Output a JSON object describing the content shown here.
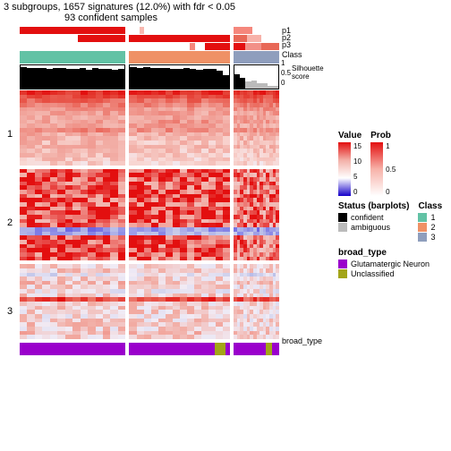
{
  "title": "3 subgroups, 1657 signatures (12.0%) with fdr < 0.05",
  "subtitle": "93 confident samples",
  "annot_labels": [
    "p1",
    "p2",
    "p3",
    "Class"
  ],
  "sil_label": "Silhouette\nscore",
  "broad_label": "broad_type",
  "row_labels": [
    "1",
    "2",
    "3"
  ],
  "sil_ticks": [
    "1",
    "0.5",
    "0"
  ],
  "columns": [
    {
      "w": 1.05,
      "p1": [
        {
          "c": "#e30f0f",
          "f": 1
        }
      ],
      "p2": [
        {
          "c": "#fff",
          "f": 0.55
        },
        {
          "c": "#e30f0f",
          "f": 0.45
        }
      ],
      "p3": [
        {
          "c": "#fff",
          "f": 1
        }
      ],
      "class": [
        {
          "c": "#62c2a5",
          "f": 1
        }
      ],
      "sil": [
        0.92,
        0.9,
        0.88,
        0.9,
        0.85,
        0.87,
        0.9,
        0.86,
        0.84,
        0.87,
        0.82,
        0.88,
        0.85,
        0.83,
        0.8,
        0.84
      ],
      "sil_col": [
        "#000"
      ],
      "broad": [
        {
          "c": "#9a00cc",
          "f": 1
        }
      ]
    },
    {
      "w": 1.0,
      "p1": [
        {
          "c": "#fff",
          "f": 0.1
        },
        {
          "c": "#f8b8b0",
          "f": 0.05
        },
        {
          "c": "#fff",
          "f": 0.85
        }
      ],
      "p2": [
        {
          "c": "#e30f0f",
          "f": 1
        }
      ],
      "p3": [
        {
          "c": "#fff",
          "f": 0.6
        },
        {
          "c": "#f5877c",
          "f": 0.05
        },
        {
          "c": "#fff",
          "f": 0.1
        },
        {
          "c": "#e30f0f",
          "f": 0.25
        }
      ],
      "class": [
        {
          "c": "#ef9166",
          "f": 1
        }
      ],
      "sil": [
        0.92,
        0.9,
        0.91,
        0.88,
        0.9,
        0.87,
        0.86,
        0.85,
        0.88,
        0.84,
        0.82,
        0.85,
        0.83,
        0.78,
        0.58
      ],
      "sil_col": [
        "#000"
      ],
      "broad": [
        {
          "c": "#9a00cc",
          "f": 0.85
        },
        {
          "c": "#a3a518",
          "f": 0.1
        },
        {
          "c": "#9a00cc",
          "f": 0.05
        }
      ]
    },
    {
      "w": 0.45,
      "p1": [
        {
          "c": "#f5877c",
          "f": 0.4
        },
        {
          "c": "#fff",
          "f": 0.6
        }
      ],
      "p2": [
        {
          "c": "#e86857",
          "f": 0.3
        },
        {
          "c": "#f7b2a9",
          "f": 0.3
        },
        {
          "c": "#fff",
          "f": 0.4
        }
      ],
      "p3": [
        {
          "c": "#e30f0f",
          "f": 0.25
        },
        {
          "c": "#f29087",
          "f": 0.35
        },
        {
          "c": "#e86857",
          "f": 0.4
        }
      ],
      "class": [
        {
          "c": "#8f9ebd",
          "f": 1
        }
      ],
      "sil": [
        0.62,
        0.45,
        0.32,
        0.35,
        0.22,
        0.25,
        0.12,
        0.1
      ],
      "sil_col": [
        "#000",
        "#000",
        "#bbb",
        "#bbb",
        "#bbb",
        "#bbb",
        "#bbb",
        "#bbb"
      ],
      "broad": [
        {
          "c": "#9a00cc",
          "f": 0.7
        },
        {
          "c": "#a3a518",
          "f": 0.15
        },
        {
          "c": "#9a00cc",
          "f": 0.15
        }
      ]
    }
  ],
  "heatmap": {
    "sections": [
      {
        "rows": 18,
        "base": [
          "#e30f0f",
          "#e53d32",
          "#ea6155",
          "#ef8c82",
          "#f3b0a8",
          "#f9d8d4",
          "#f1ecf6",
          "#c5c6e6"
        ],
        "panels": [
          [
            0.9,
            0.8,
            0.7,
            0.6,
            0.55,
            0.5,
            0.48,
            0.47,
            0.46,
            0.6,
            0.45,
            0.42,
            0.4,
            0.42,
            0.4,
            0.38,
            0.35,
            0.3
          ],
          [
            0.88,
            0.78,
            0.68,
            0.58,
            0.5,
            0.48,
            0.5,
            0.52,
            0.5,
            0.55,
            0.4,
            0.38,
            0.36,
            0.4,
            0.35,
            0.32,
            0.3,
            0.28
          ],
          [
            0.9,
            0.8,
            0.7,
            0.6,
            0.55,
            0.5,
            0.48,
            0.5,
            0.47,
            0.55,
            0.42,
            0.4,
            0.38,
            0.4,
            0.36,
            0.34,
            0.3,
            0.28
          ]
        ]
      },
      {
        "rows": 22,
        "base": [
          "#1400c9",
          "#2a12d6",
          "#584ee0",
          "#8d8ce6",
          "#c1c6ea",
          "#ede4ee",
          "#f3b0a8",
          "#e30f0f"
        ],
        "panels": [
          [
            0.05,
            0.04,
            0.05,
            0.06,
            0.05,
            0.07,
            0.06,
            0.05,
            0.06,
            0.05,
            0.04,
            0.05,
            0.06,
            0.05,
            0.55,
            0.5,
            0.04,
            0.05,
            0.06,
            0.04,
            0.05,
            0.06
          ],
          [
            0.05,
            0.04,
            0.05,
            0.06,
            0.05,
            0.07,
            0.06,
            0.05,
            0.06,
            0.05,
            0.04,
            0.05,
            0.06,
            0.05,
            0.52,
            0.48,
            0.04,
            0.05,
            0.06,
            0.04,
            0.05,
            0.06
          ],
          [
            0.1,
            0.1,
            0.08,
            0.1,
            0.12,
            0.1,
            0.08,
            0.1,
            0.1,
            0.08,
            0.1,
            0.1,
            0.1,
            0.1,
            0.55,
            0.5,
            0.1,
            0.1,
            0.1,
            0.1,
            0.1,
            0.1
          ]
        ]
      },
      {
        "rows": 18,
        "base": [
          "#1400c9",
          "#584ee0",
          "#c1c6ea",
          "#f1ecf6",
          "#f3b0a8",
          "#ef8c82",
          "#ea6155",
          "#e30f0f"
        ],
        "panels": [
          [
            0.5,
            0.48,
            0.6,
            0.5,
            0.45,
            0.5,
            0.55,
            0.5,
            0.1,
            0.5,
            0.48,
            0.5,
            0.52,
            0.5,
            0.48,
            0.5,
            0.45,
            0.5
          ],
          [
            0.5,
            0.48,
            0.6,
            0.5,
            0.45,
            0.5,
            0.55,
            0.5,
            0.1,
            0.5,
            0.48,
            0.5,
            0.52,
            0.5,
            0.48,
            0.5,
            0.45,
            0.5
          ],
          [
            0.52,
            0.5,
            0.62,
            0.52,
            0.48,
            0.52,
            0.56,
            0.52,
            0.14,
            0.52,
            0.5,
            0.52,
            0.54,
            0.52,
            0.5,
            0.52,
            0.48,
            0.5
          ]
        ]
      }
    ],
    "noise_cols": 14
  },
  "legends": {
    "value": {
      "title": "Value",
      "ticks": [
        "15",
        "10",
        "5",
        "0"
      ],
      "colors": [
        "#e30f0f",
        "#f3b0a8",
        "#ffffff",
        "#1400c9"
      ]
    },
    "prob": {
      "title": "Prob",
      "ticks": [
        "1",
        "0.5",
        "0"
      ],
      "colors": [
        "#e30f0f",
        "#f7b2a9",
        "#ffffff"
      ]
    },
    "status": {
      "title": "Status (barplots)",
      "items": [
        {
          "c": "#000000",
          "l": "confident"
        },
        {
          "c": "#bbbbbb",
          "l": "ambiguous"
        }
      ]
    },
    "class": {
      "title": "Class",
      "items": [
        {
          "c": "#62c2a5",
          "l": "1"
        },
        {
          "c": "#ef9166",
          "l": "2"
        },
        {
          "c": "#8f9ebd",
          "l": "3"
        }
      ]
    },
    "broad": {
      "title": "broad_type",
      "items": [
        {
          "c": "#9a00cc",
          "l": "Glutamatergic Neuron"
        },
        {
          "c": "#a3a518",
          "l": "Unclassified"
        }
      ]
    }
  }
}
